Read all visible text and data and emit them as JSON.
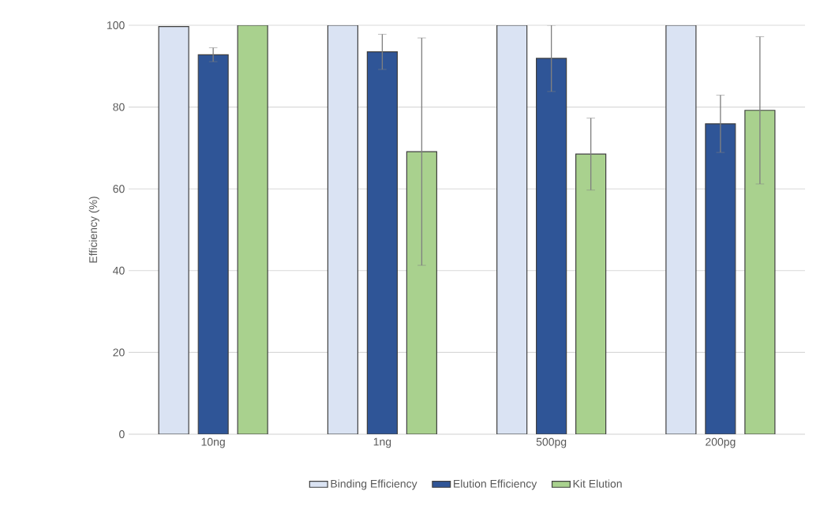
{
  "chart_data": {
    "type": "bar",
    "ylabel": "Efficiency (%)",
    "categories": [
      "10ng",
      "1ng",
      "500pg",
      "200pg"
    ],
    "series": [
      {
        "name": "Binding Efficiency",
        "color": "#dae3f3",
        "values": [
          99.7,
          100,
          100,
          100
        ]
      },
      {
        "name": "Elution Efficiency",
        "color": "#2f5597",
        "values": [
          92.8,
          93.5,
          91.9,
          75.9
        ],
        "errors": [
          1.7,
          4.3,
          8.1,
          7
        ]
      },
      {
        "name": "Kit Elution",
        "color": "#a9d18e",
        "values": [
          100,
          69.1,
          68.5,
          79.2
        ],
        "errors": [
          0,
          27.8,
          8.8,
          18
        ]
      }
    ],
    "ylim": [
      0,
      100
    ],
    "yticks": [
      0,
      20,
      40,
      60,
      80,
      100
    ],
    "grid": "y",
    "legend": "bottom"
  }
}
